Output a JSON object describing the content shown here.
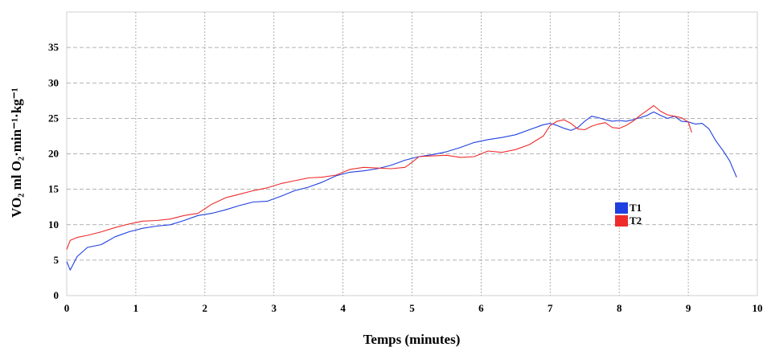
{
  "chart_data": {
    "type": "line",
    "xlabel": "Temps (minutes)",
    "ylabel": "VO₂ ml O₂·min⁻¹·kg⁻¹",
    "xlim": [
      0,
      10
    ],
    "ylim": [
      0,
      40
    ],
    "xticks": [
      "0",
      "1",
      "2",
      "3",
      "4",
      "5",
      "6",
      "7",
      "8",
      "9",
      "10"
    ],
    "yticks": [
      "0",
      "5",
      "10",
      "15",
      "20",
      "25",
      "30",
      "35"
    ],
    "grid": true,
    "legend_position": "right-middle",
    "series": [
      {
        "name": "T1",
        "color": "#1f3fe0",
        "x": [
          0.0,
          0.05,
          0.15,
          0.3,
          0.5,
          0.7,
          0.9,
          1.1,
          1.3,
          1.5,
          1.7,
          1.9,
          2.1,
          2.3,
          2.5,
          2.7,
          2.9,
          3.1,
          3.3,
          3.5,
          3.7,
          3.9,
          4.1,
          4.3,
          4.5,
          4.7,
          4.9,
          5.1,
          5.3,
          5.5,
          5.7,
          5.9,
          6.1,
          6.3,
          6.5,
          6.7,
          6.9,
          7.0,
          7.1,
          7.2,
          7.3,
          7.4,
          7.5,
          7.6,
          7.7,
          7.8,
          7.9,
          8.0,
          8.1,
          8.2,
          8.3,
          8.4,
          8.5,
          8.6,
          8.7,
          8.8,
          8.9,
          9.0,
          9.1,
          9.2,
          9.3,
          9.4,
          9.5,
          9.6,
          9.7
        ],
        "values": [
          4.8,
          3.6,
          5.5,
          6.8,
          7.2,
          8.3,
          9.0,
          9.5,
          9.8,
          10.0,
          10.6,
          11.3,
          11.6,
          12.1,
          12.7,
          13.2,
          13.3,
          14.0,
          14.8,
          15.3,
          16.0,
          16.9,
          17.4,
          17.6,
          17.9,
          18.4,
          19.1,
          19.6,
          19.9,
          20.3,
          20.9,
          21.6,
          22.0,
          22.3,
          22.7,
          23.4,
          24.1,
          24.3,
          24.0,
          23.6,
          23.3,
          23.7,
          24.6,
          25.3,
          25.1,
          24.8,
          24.6,
          24.7,
          24.6,
          24.8,
          25.1,
          25.4,
          25.9,
          25.4,
          25.0,
          25.3,
          24.6,
          24.5,
          24.2,
          24.3,
          23.5,
          21.8,
          20.5,
          19.0,
          16.7
        ]
      },
      {
        "name": "T2",
        "color": "#ee2c2c",
        "x": [
          0.0,
          0.05,
          0.15,
          0.3,
          0.5,
          0.7,
          0.9,
          1.1,
          1.3,
          1.5,
          1.7,
          1.9,
          2.1,
          2.3,
          2.5,
          2.7,
          2.9,
          3.1,
          3.3,
          3.5,
          3.7,
          3.9,
          4.1,
          4.3,
          4.5,
          4.7,
          4.9,
          5.0,
          5.1,
          5.3,
          5.5,
          5.7,
          5.9,
          6.1,
          6.3,
          6.5,
          6.7,
          6.9,
          7.0,
          7.1,
          7.2,
          7.3,
          7.4,
          7.5,
          7.6,
          7.7,
          7.8,
          7.9,
          8.0,
          8.1,
          8.2,
          8.3,
          8.4,
          8.5,
          8.6,
          8.7,
          8.8,
          8.9,
          9.0,
          9.05
        ],
        "values": [
          6.5,
          7.8,
          8.2,
          8.5,
          9.0,
          9.6,
          10.1,
          10.5,
          10.6,
          10.8,
          11.3,
          11.6,
          12.9,
          13.8,
          14.3,
          14.8,
          15.2,
          15.8,
          16.2,
          16.6,
          16.7,
          17.0,
          17.8,
          18.1,
          18.0,
          17.9,
          18.1,
          18.8,
          19.6,
          19.7,
          19.8,
          19.5,
          19.6,
          20.4,
          20.2,
          20.6,
          21.3,
          22.5,
          24.0,
          24.6,
          24.8,
          24.3,
          23.5,
          23.4,
          23.9,
          24.2,
          24.4,
          23.7,
          23.6,
          24.0,
          24.6,
          25.4,
          26.1,
          26.8,
          26.0,
          25.5,
          25.3,
          25.1,
          24.5,
          23.0
        ]
      }
    ]
  }
}
